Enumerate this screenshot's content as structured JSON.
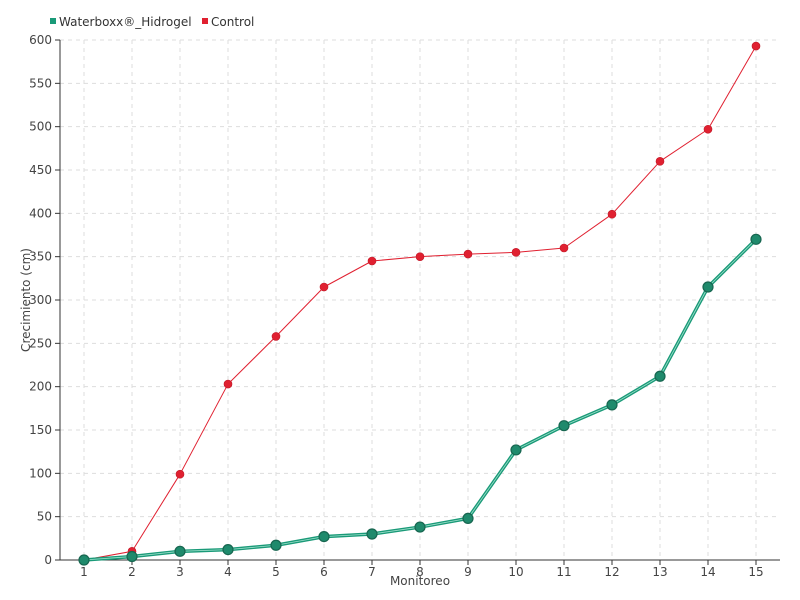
{
  "chart_data": {
    "type": "line",
    "xlabel": "Monitoreo",
    "ylabel": "Crecimiento (cm)",
    "x": [
      1,
      2,
      3,
      4,
      5,
      6,
      7,
      8,
      9,
      10,
      11,
      12,
      13,
      14,
      15
    ],
    "ylim": [
      0,
      600
    ],
    "yticks": [
      0,
      50,
      100,
      150,
      200,
      250,
      300,
      350,
      400,
      450,
      500,
      550,
      600
    ],
    "grid": true,
    "legend_position": "top-left",
    "series": [
      {
        "name": "Waterboxx®_Hidrogel",
        "color": "#1a9a78",
        "values": [
          0,
          4,
          10,
          12,
          17,
          27,
          30,
          38,
          48,
          127,
          155,
          179,
          212,
          315,
          370
        ]
      },
      {
        "name": "Control",
        "color": "#e02030",
        "values": [
          0,
          10,
          99,
          203,
          258,
          315,
          345,
          350,
          353,
          355,
          360,
          399,
          460,
          497,
          593
        ]
      }
    ]
  }
}
